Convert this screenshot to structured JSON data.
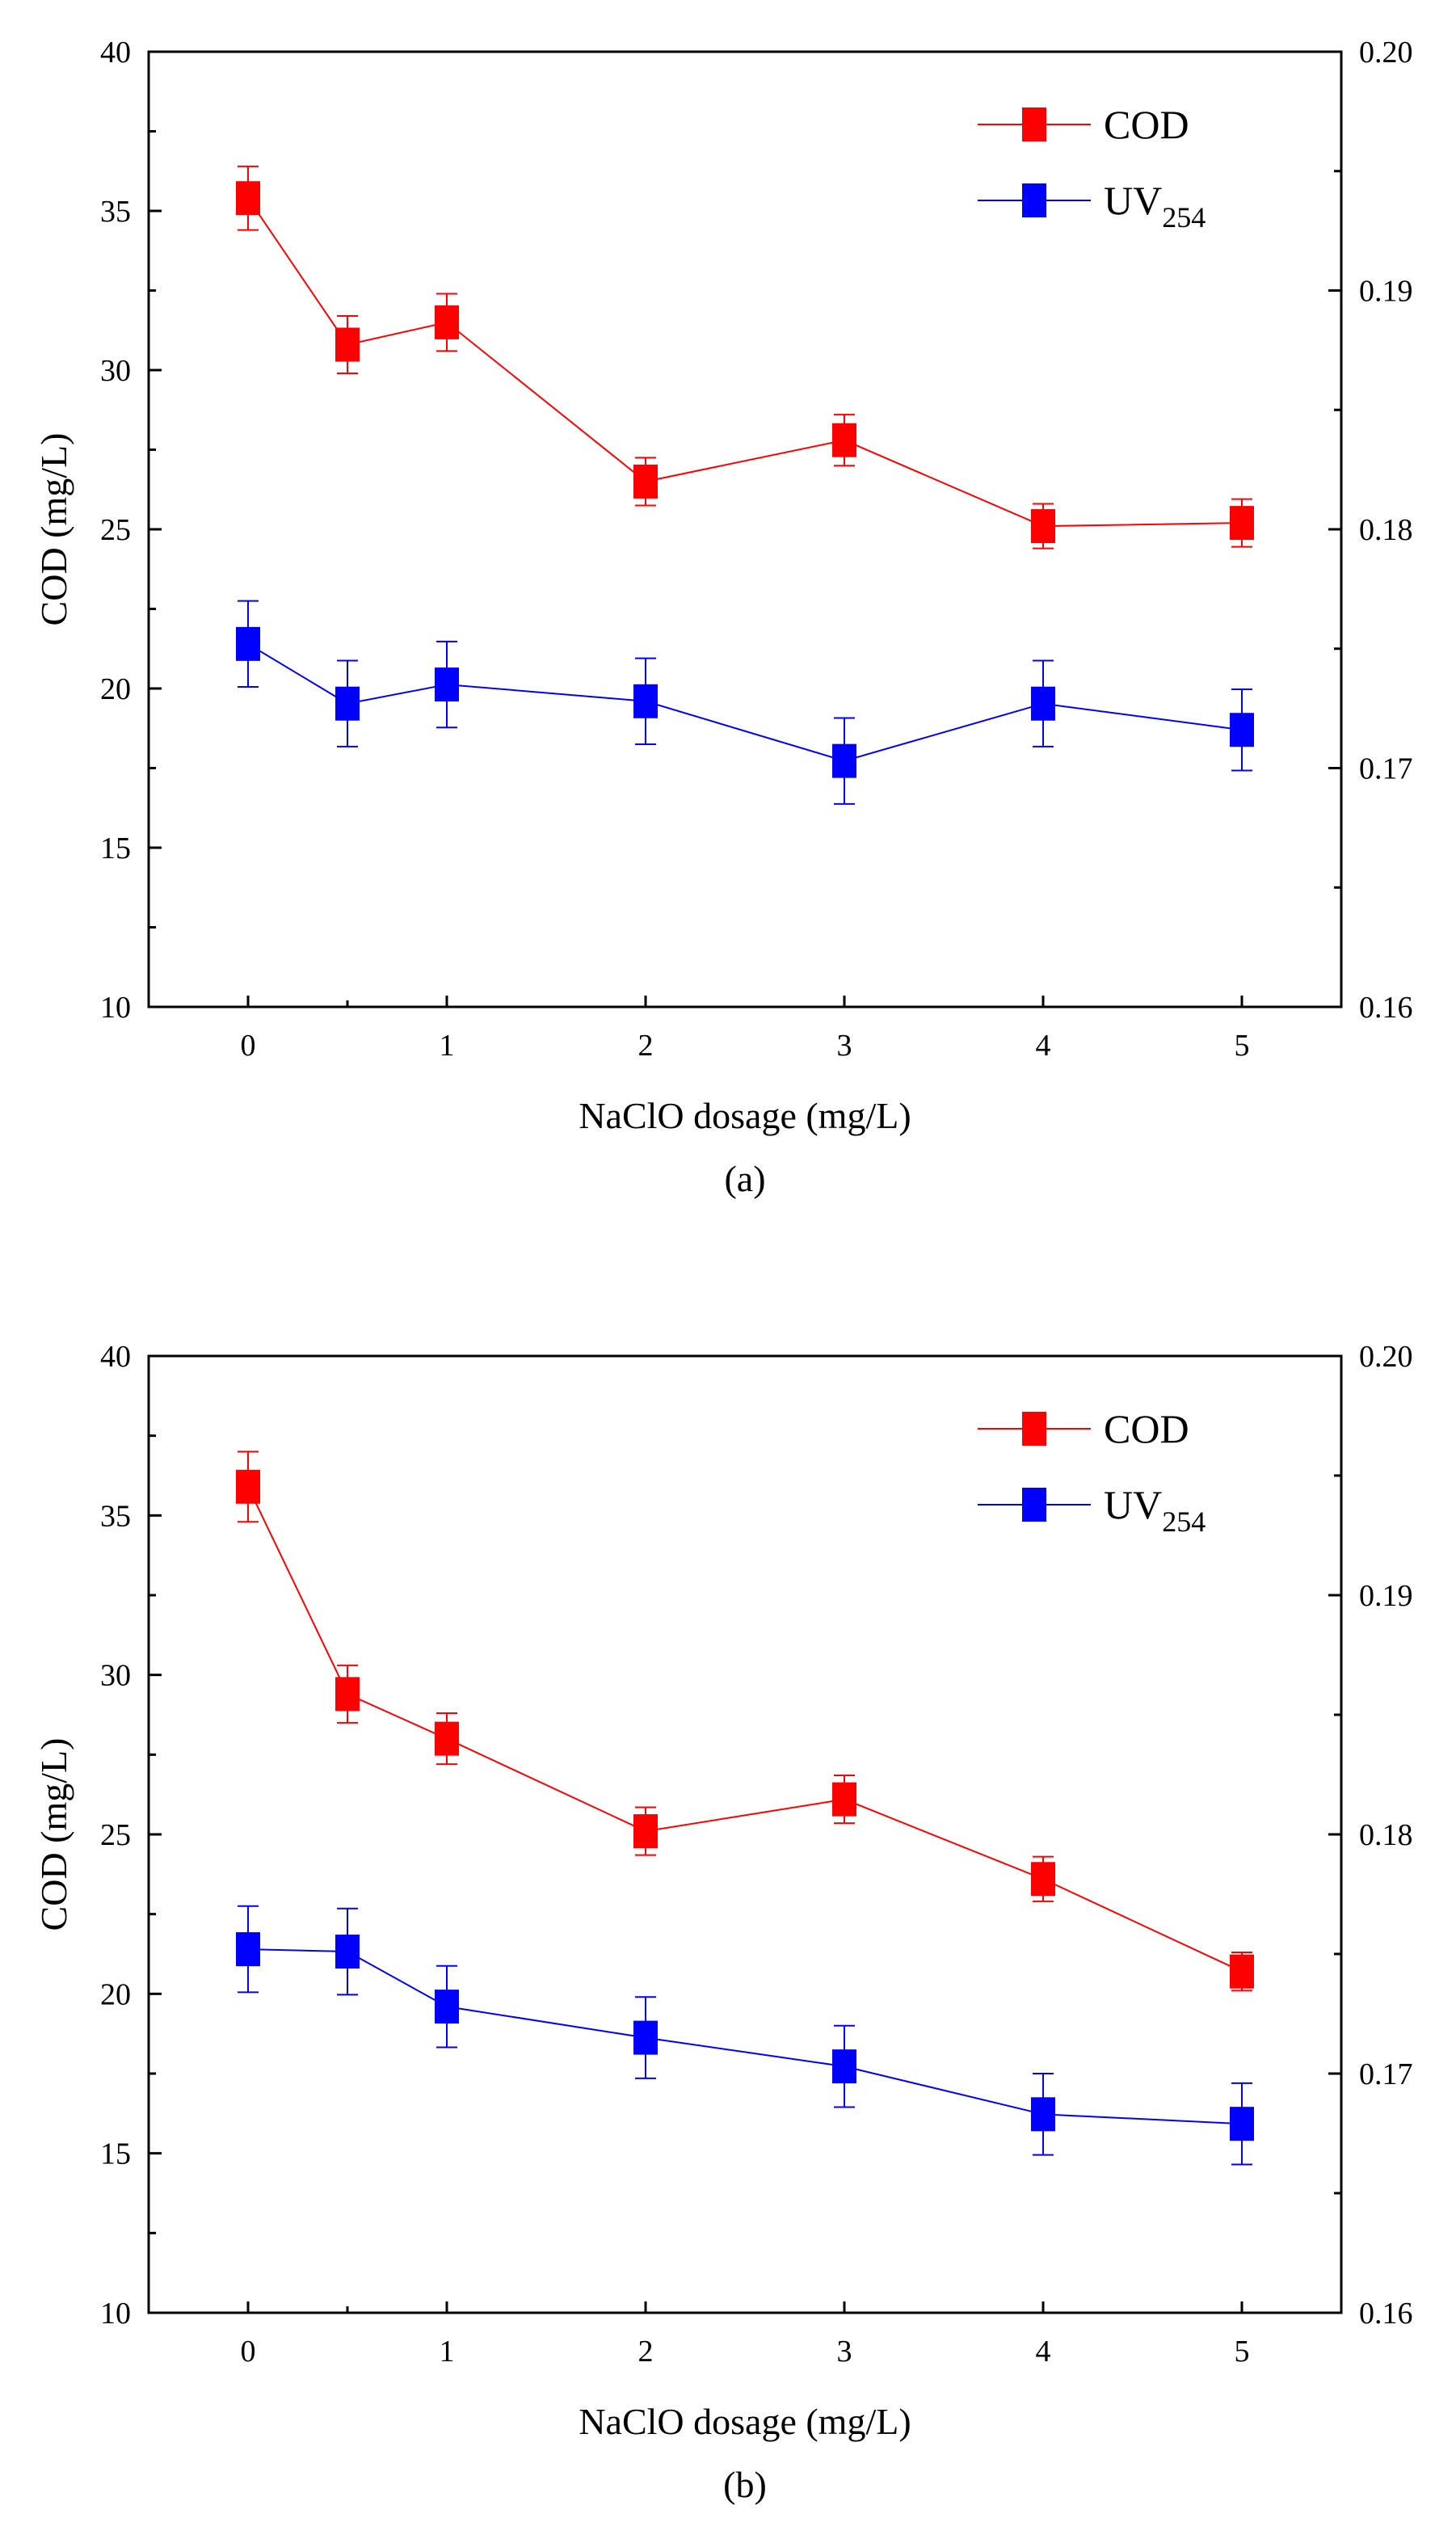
{
  "chart_data": [
    {
      "type": "line",
      "panel_label": "(a)",
      "xlabel": "NaClO dosage (mg/L)",
      "ylabel": "COD (mg/L)",
      "y2label": "",
      "x": [
        0,
        0.5,
        1,
        2,
        3,
        4,
        5
      ],
      "x_tick_labels": [
        "0",
        "1",
        "2",
        "3",
        "4",
        "5"
      ],
      "x_tick_values": [
        0,
        1,
        2,
        3,
        4,
        5
      ],
      "xlim": [
        -0.5,
        5.5
      ],
      "ylim": [
        10,
        40
      ],
      "y_ticks": [
        "10",
        "15",
        "20",
        "25",
        "30",
        "35",
        "40"
      ],
      "y2lim": [
        0.16,
        0.2
      ],
      "y2_ticks": [
        "0.16",
        "0.17",
        "0.18",
        "0.19",
        "0.20"
      ],
      "legend_position": "top-right",
      "series": [
        {
          "name": "COD",
          "axis": "left",
          "color": "#ff0000",
          "values": [
            35.4,
            30.8,
            31.5,
            26.5,
            27.8,
            25.1,
            25.2
          ],
          "yerr": [
            1.0,
            0.9,
            0.9,
            0.75,
            0.8,
            0.7,
            0.75
          ]
        },
        {
          "name": "UV254",
          "name_main": "UV",
          "name_sub": "254",
          "axis": "right",
          "color": "#0000ff",
          "values": [
            0.1752,
            0.1727,
            0.1735,
            0.1728,
            0.1703,
            0.1727,
            0.1716
          ],
          "yerr": [
            0.0018,
            0.0018,
            0.0018,
            0.0018,
            0.0018,
            0.0018,
            0.0017
          ]
        }
      ]
    },
    {
      "type": "line",
      "panel_label": "(b)",
      "xlabel": "NaClO dosage (mg/L)",
      "ylabel": "COD (mg/L)",
      "y2label": "",
      "x": [
        0,
        0.5,
        1,
        2,
        3,
        4,
        5
      ],
      "x_tick_labels": [
        "0",
        "1",
        "2",
        "3",
        "4",
        "5"
      ],
      "x_tick_values": [
        0,
        1,
        2,
        3,
        4,
        5
      ],
      "xlim": [
        -0.5,
        5.5
      ],
      "ylim": [
        10,
        40
      ],
      "y_ticks": [
        "10",
        "15",
        "20",
        "25",
        "30",
        "35",
        "40"
      ],
      "y2lim": [
        0.16,
        0.2
      ],
      "y2_ticks": [
        "0.16",
        "0.17",
        "0.18",
        "0.19",
        "0.20"
      ],
      "legend_position": "top-right",
      "series": [
        {
          "name": "COD",
          "axis": "left",
          "color": "#ff0000",
          "values": [
            35.9,
            29.4,
            28.0,
            25.1,
            26.1,
            23.6,
            20.7
          ],
          "yerr": [
            1.1,
            0.9,
            0.8,
            0.75,
            0.75,
            0.7,
            0.6
          ]
        },
        {
          "name": "UV254",
          "name_main": "UV",
          "name_sub": "254",
          "axis": "right",
          "color": "#0000ff",
          "values": [
            0.1752,
            0.1751,
            0.1728,
            0.1715,
            0.1703,
            0.1683,
            0.1679
          ],
          "yerr": [
            0.0018,
            0.0018,
            0.0017,
            0.0017,
            0.0017,
            0.0017,
            0.0017
          ]
        }
      ]
    }
  ]
}
